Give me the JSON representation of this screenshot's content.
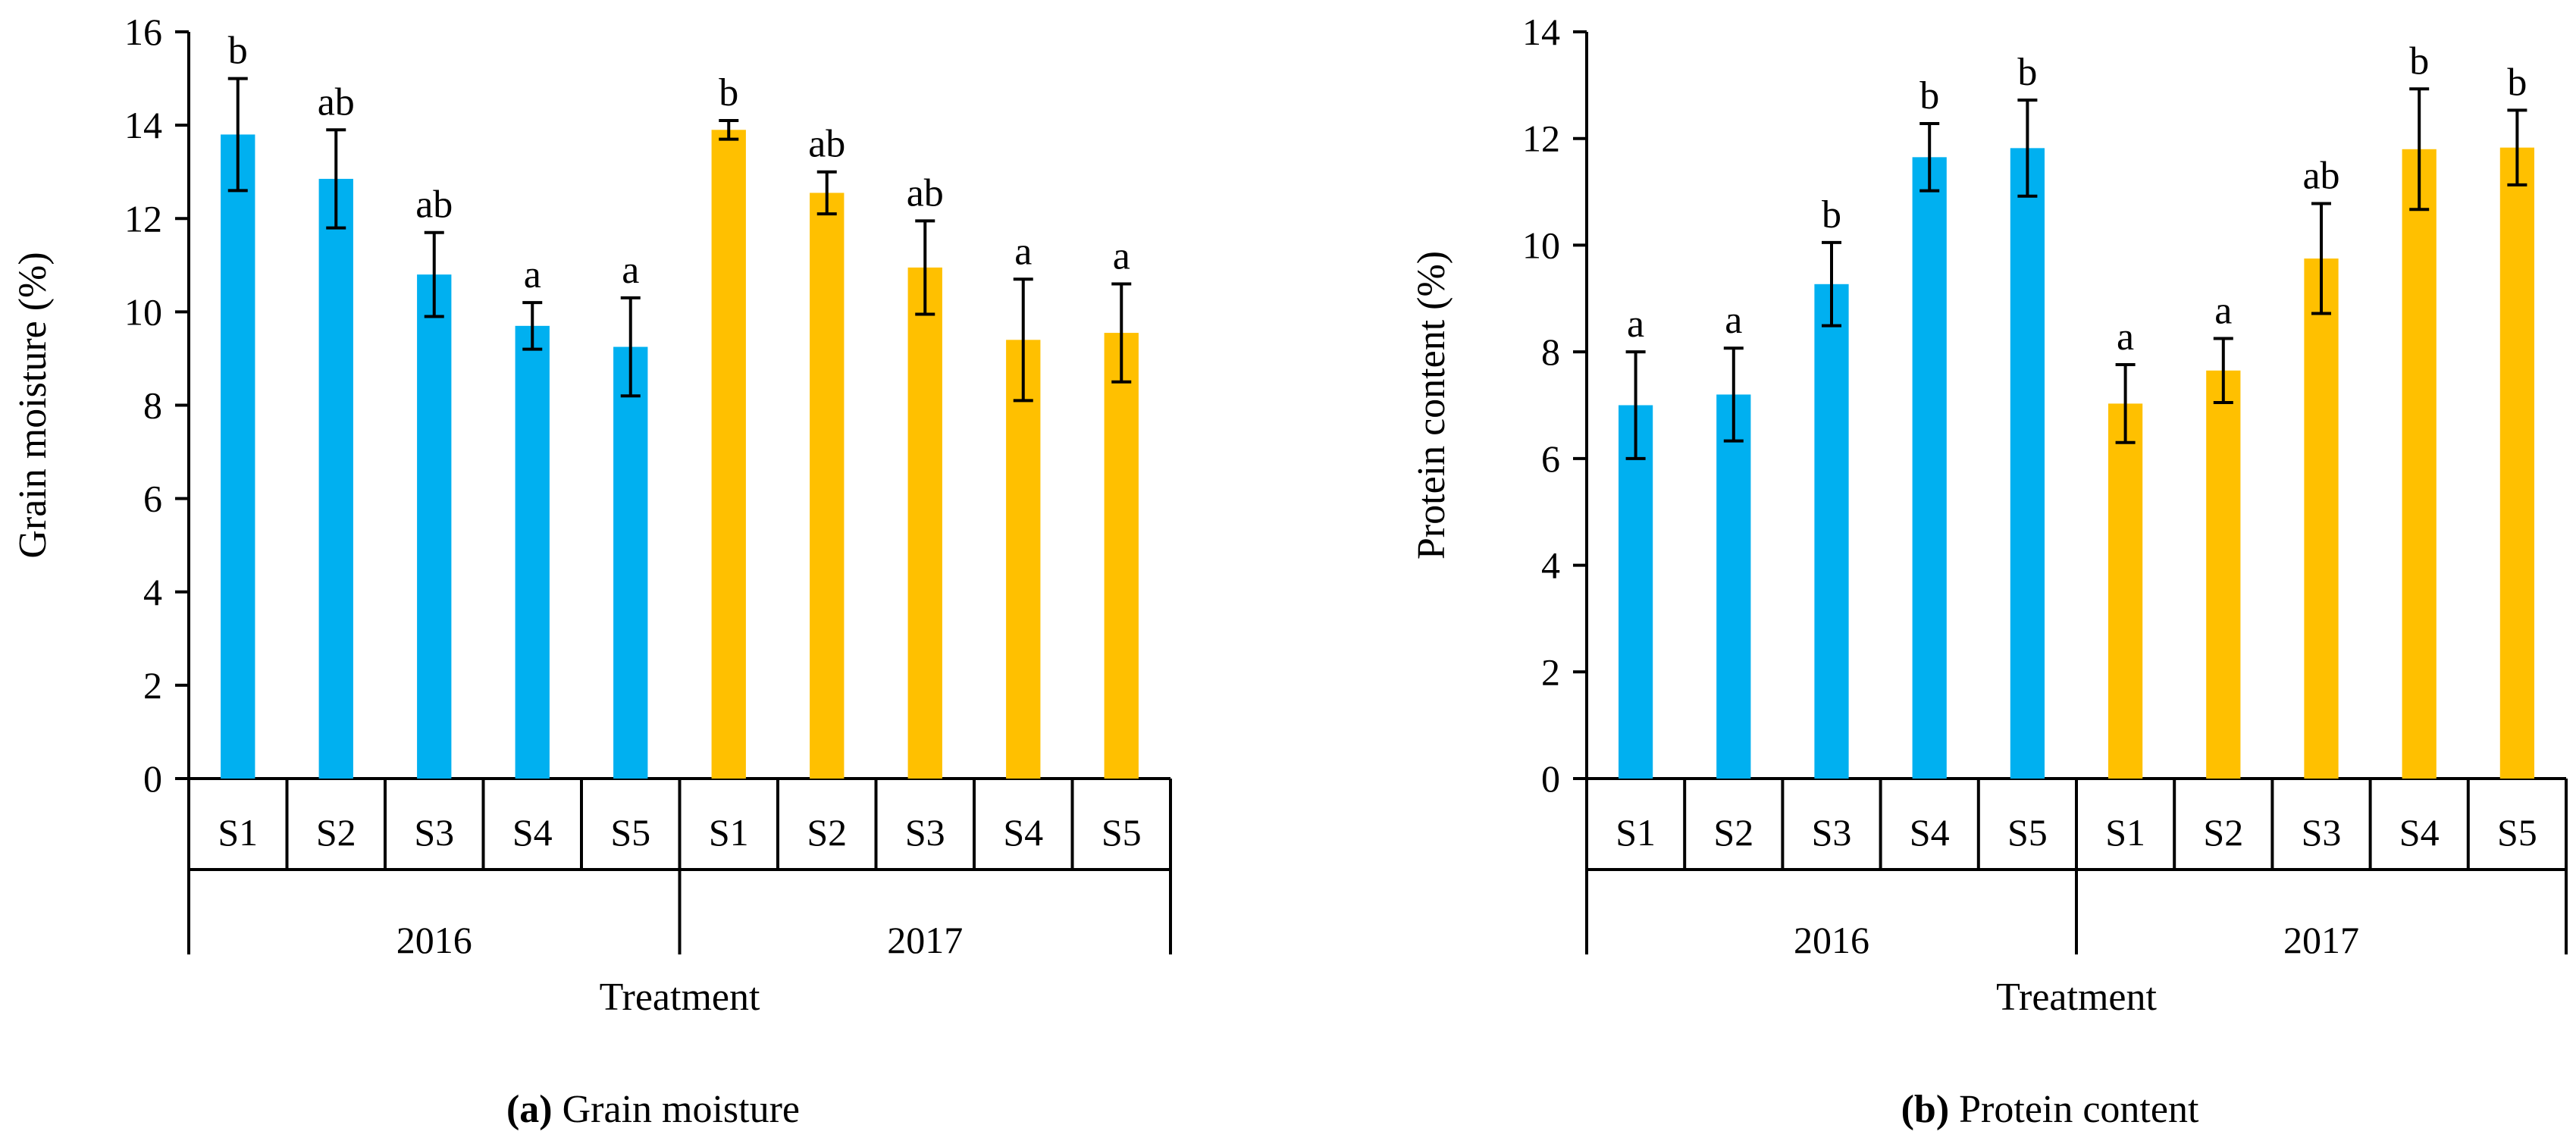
{
  "colors": {
    "y2016": "#00B0F0",
    "y2017": "#FFC000",
    "axis": "#000000"
  },
  "chart_data": [
    {
      "type": "bar",
      "id": "a",
      "caption_label": "(a)",
      "caption_text": "Grain moisture",
      "ylabel": "Grain moisture (%)",
      "xlabel": "Treatment",
      "ylim": [
        0,
        16
      ],
      "yticks": [
        0,
        2,
        4,
        6,
        8,
        10,
        12,
        14,
        16
      ],
      "groups": [
        {
          "name": "2016",
          "color_key": "y2016",
          "categories": [
            "S1",
            "S2",
            "S3",
            "S4",
            "S5"
          ],
          "values": [
            13.8,
            12.85,
            10.8,
            9.7,
            9.25
          ],
          "errors": [
            1.2,
            1.05,
            0.9,
            0.5,
            1.05
          ],
          "letters": [
            "b",
            "ab",
            "ab",
            "a",
            "a"
          ]
        },
        {
          "name": "2017",
          "color_key": "y2017",
          "categories": [
            "S1",
            "S2",
            "S3",
            "S4",
            "S5"
          ],
          "values": [
            13.9,
            12.55,
            10.95,
            9.4,
            9.55
          ],
          "errors": [
            0.2,
            0.45,
            1.0,
            1.3,
            1.05
          ],
          "letters": [
            "b",
            "ab",
            "ab",
            "a",
            "a"
          ]
        }
      ]
    },
    {
      "type": "bar",
      "id": "b",
      "caption_label": "(b)",
      "caption_text": "Protein content",
      "ylabel": "Protein content (%)",
      "xlabel": "Treatment",
      "ylim": [
        0,
        14
      ],
      "yticks": [
        0,
        2,
        4,
        6,
        8,
        10,
        12,
        14
      ],
      "groups": [
        {
          "name": "2016",
          "color_key": "y2016",
          "categories": [
            "S1",
            "S2",
            "S3",
            "S4",
            "S5"
          ],
          "values": [
            7.0,
            7.2,
            9.27,
            11.65,
            11.82
          ],
          "errors": [
            1.0,
            0.87,
            0.78,
            0.63,
            0.9
          ],
          "letters": [
            "a",
            "a",
            "b",
            "b",
            "b"
          ]
        },
        {
          "name": "2017",
          "color_key": "y2017",
          "categories": [
            "S1",
            "S2",
            "S3",
            "S4",
            "S5"
          ],
          "values": [
            7.03,
            7.65,
            9.75,
            11.8,
            11.83
          ],
          "errors": [
            0.73,
            0.6,
            1.03,
            1.13,
            0.7
          ],
          "letters": [
            "a",
            "a",
            "ab",
            "b",
            "b"
          ]
        }
      ]
    }
  ]
}
